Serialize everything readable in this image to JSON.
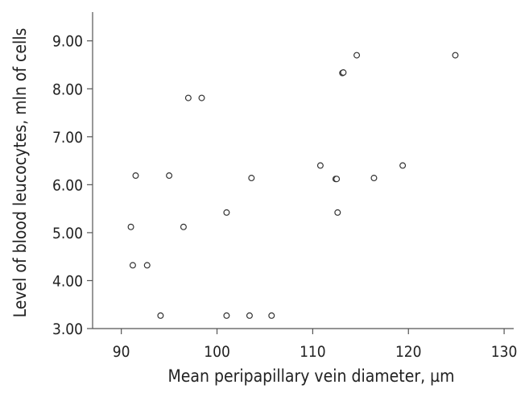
{
  "chart_data": {
    "type": "scatter",
    "title": "",
    "xlabel": "Mean peripapillary vein diameter, µm",
    "ylabel": "Level of blood leucocytes, mln of cells",
    "xlim": [
      87,
      131
    ],
    "ylim": [
      3.0,
      9.6
    ],
    "x_ticks": [
      90,
      100,
      110,
      120,
      130
    ],
    "x_tick_labels": [
      "90",
      "100",
      "110",
      "120",
      "130"
    ],
    "y_ticks": [
      3.0,
      4.0,
      5.0,
      6.0,
      7.0,
      8.0,
      9.0
    ],
    "y_tick_labels": [
      "3.00",
      "4.00",
      "5.00",
      "6.00",
      "7.00",
      "8.00",
      "9.00"
    ],
    "grid": false,
    "legend": "none",
    "colors": {
      "marker_stroke": "#333333",
      "axis": "#555555",
      "text": "#222222"
    },
    "points": [
      {
        "x": 91.0,
        "y": 5.12
      },
      {
        "x": 91.2,
        "y": 4.32
      },
      {
        "x": 91.5,
        "y": 6.19
      },
      {
        "x": 92.7,
        "y": 4.32
      },
      {
        "x": 94.1,
        "y": 3.27
      },
      {
        "x": 95.0,
        "y": 6.19
      },
      {
        "x": 96.5,
        "y": 5.12
      },
      {
        "x": 97.0,
        "y": 7.81
      },
      {
        "x": 98.4,
        "y": 7.81
      },
      {
        "x": 101.0,
        "y": 5.42
      },
      {
        "x": 101.0,
        "y": 3.27
      },
      {
        "x": 103.4,
        "y": 3.27
      },
      {
        "x": 103.6,
        "y": 6.14
      },
      {
        "x": 105.7,
        "y": 3.27
      },
      {
        "x": 110.8,
        "y": 6.4
      },
      {
        "x": 112.4,
        "y": 6.12
      },
      {
        "x": 112.5,
        "y": 6.12
      },
      {
        "x": 112.6,
        "y": 5.42
      },
      {
        "x": 113.1,
        "y": 8.33
      },
      {
        "x": 113.2,
        "y": 8.34
      },
      {
        "x": 114.6,
        "y": 8.7
      },
      {
        "x": 116.4,
        "y": 6.14
      },
      {
        "x": 119.4,
        "y": 6.4
      },
      {
        "x": 124.9,
        "y": 8.7
      }
    ]
  }
}
